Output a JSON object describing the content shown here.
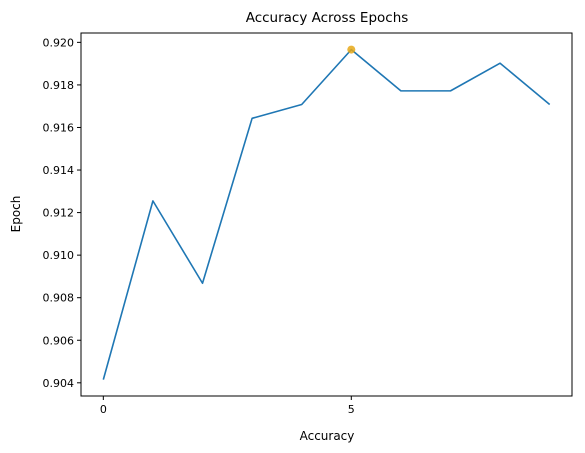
{
  "chart_data": {
    "type": "line",
    "title": "Accuracy Across Epochs",
    "xlabel": "Accuracy",
    "ylabel": "Epoch",
    "x": [
      0,
      1,
      2,
      3,
      4,
      5,
      6,
      7,
      8,
      9
    ],
    "series": [
      {
        "values": [
          0.90415,
          0.91255,
          0.90868,
          0.91643,
          0.91708,
          0.91966,
          0.91772,
          0.91772,
          0.91902,
          0.91708
        ],
        "color": "#1f77b4"
      }
    ],
    "highlight": {
      "x": 5,
      "y": 0.91966,
      "color": "#e6a817"
    },
    "xlim": [
      -0.45,
      9.45
    ],
    "ylim": [
      0.90338,
      0.92044
    ],
    "xticks": [
      0,
      5
    ],
    "yticks": [
      0.904,
      0.906,
      0.908,
      0.91,
      0.912,
      0.914,
      0.916,
      0.918,
      0.92
    ],
    "xtick_labels": [
      "0",
      "5"
    ],
    "ytick_labels": [
      "0.904",
      "0.906",
      "0.908",
      "0.910",
      "0.912",
      "0.914",
      "0.916",
      "0.918",
      "0.920"
    ],
    "grid": false,
    "legend": "none"
  }
}
